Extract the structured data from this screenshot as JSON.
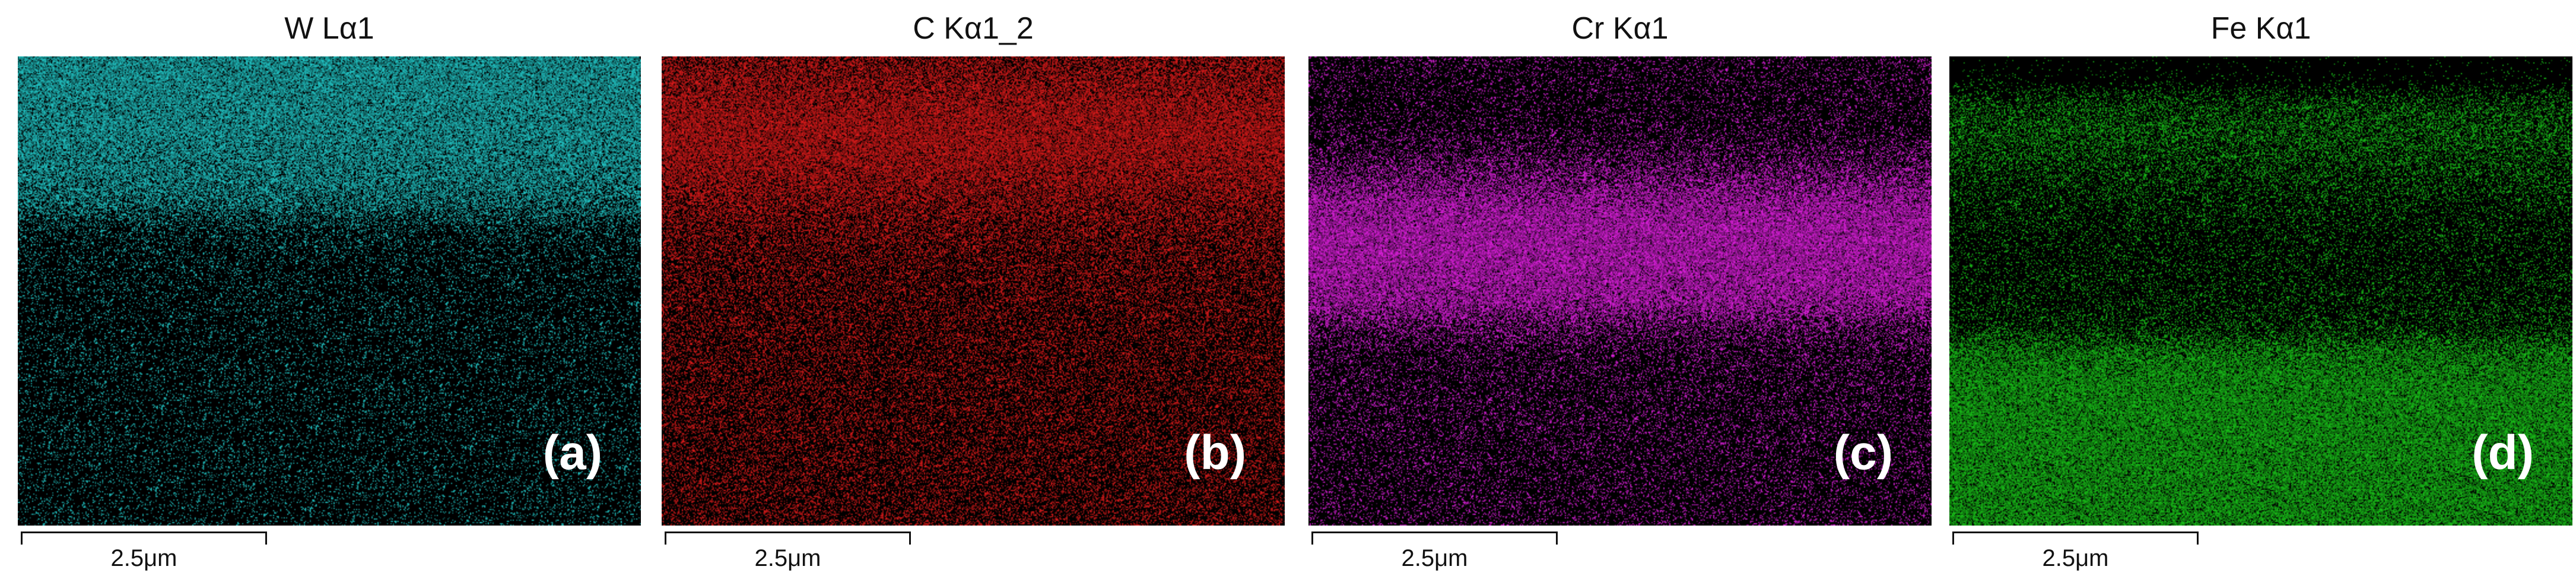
{
  "panels": [
    {
      "title": "W Lα1",
      "letter": "(a)",
      "scale": "2.5μm",
      "color": "#22c8c8",
      "icon": "eds-map-tungsten",
      "intensity_profile": [
        0.9,
        0.9,
        0.85,
        0.85,
        0.8,
        0.75,
        0.6,
        0.25,
        0.18,
        0.16,
        0.15,
        0.15,
        0.15,
        0.15,
        0.15,
        0.15,
        0.15,
        0.15,
        0.15,
        0.15
      ]
    },
    {
      "title": "C Kα1_2",
      "letter": "(b)",
      "scale": "2.5μm",
      "color": "#e01b1b",
      "icon": "eds-map-carbon",
      "intensity_profile": [
        0.6,
        0.72,
        0.82,
        0.88,
        0.85,
        0.75,
        0.62,
        0.52,
        0.45,
        0.42,
        0.4,
        0.38,
        0.37,
        0.37,
        0.36,
        0.36,
        0.35,
        0.35,
        0.35,
        0.35
      ]
    },
    {
      "title": "Cr Kα1",
      "letter": "(c)",
      "scale": "2.5μm",
      "color": "#e020e0",
      "icon": "eds-map-chromium",
      "intensity_profile": [
        0.2,
        0.18,
        0.16,
        0.2,
        0.35,
        0.6,
        0.85,
        0.95,
        0.95,
        0.9,
        0.82,
        0.45,
        0.25,
        0.22,
        0.22,
        0.22,
        0.2,
        0.2,
        0.2,
        0.2
      ]
    },
    {
      "title": "Fe Kα1",
      "letter": "(d)",
      "scale": "2.5μm",
      "color": "#19c419",
      "icon": "eds-map-iron",
      "intensity_profile": [
        0.02,
        0.05,
        0.4,
        0.5,
        0.42,
        0.32,
        0.25,
        0.2,
        0.18,
        0.2,
        0.22,
        0.3,
        0.72,
        0.85,
        0.88,
        0.88,
        0.87,
        0.86,
        0.86,
        0.86
      ]
    }
  ]
}
